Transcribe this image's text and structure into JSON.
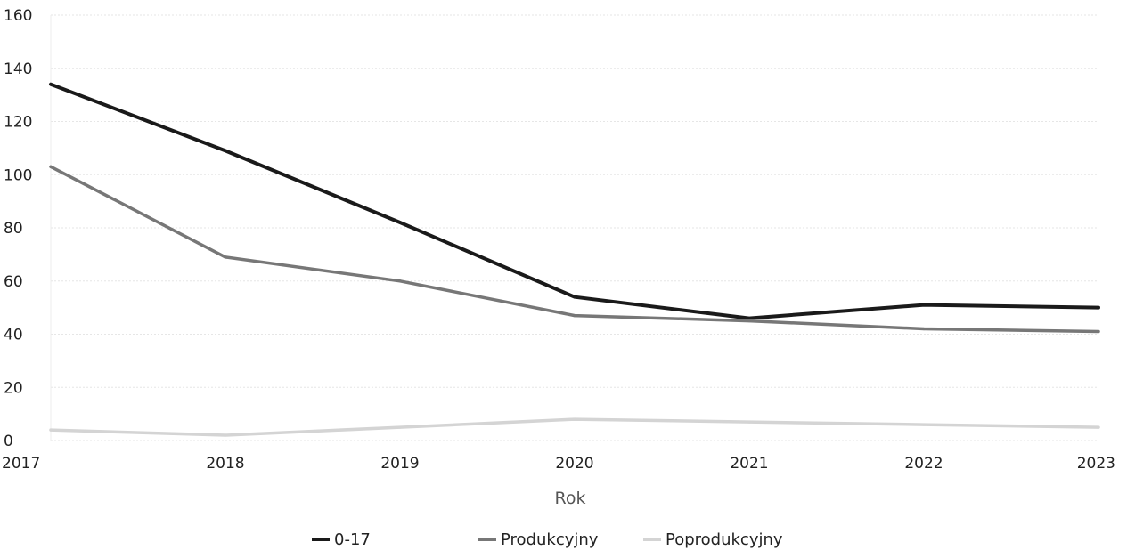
{
  "chart_data": {
    "type": "line",
    "title": "",
    "xlabel": "Rok",
    "ylabel": "",
    "x": [
      2017,
      2018,
      2019,
      2020,
      2021,
      2022,
      2023
    ],
    "ylim": [
      0,
      160
    ],
    "yticks": [
      0,
      20,
      40,
      60,
      80,
      100,
      120,
      140,
      160
    ],
    "grid": true,
    "legend_position": "bottom",
    "series": [
      {
        "name": "0-17",
        "values": [
          134,
          109,
          82,
          54,
          46,
          51,
          50
        ],
        "color": "#1a1a1a"
      },
      {
        "name": "Produkcyjny",
        "values": [
          103,
          69,
          60,
          47,
          45,
          42,
          41
        ],
        "color": "#777777"
      },
      {
        "name": "Poprodukcyjny",
        "values": [
          4,
          2,
          5,
          8,
          7,
          6,
          5
        ],
        "color": "#d4d4d4"
      }
    ]
  }
}
